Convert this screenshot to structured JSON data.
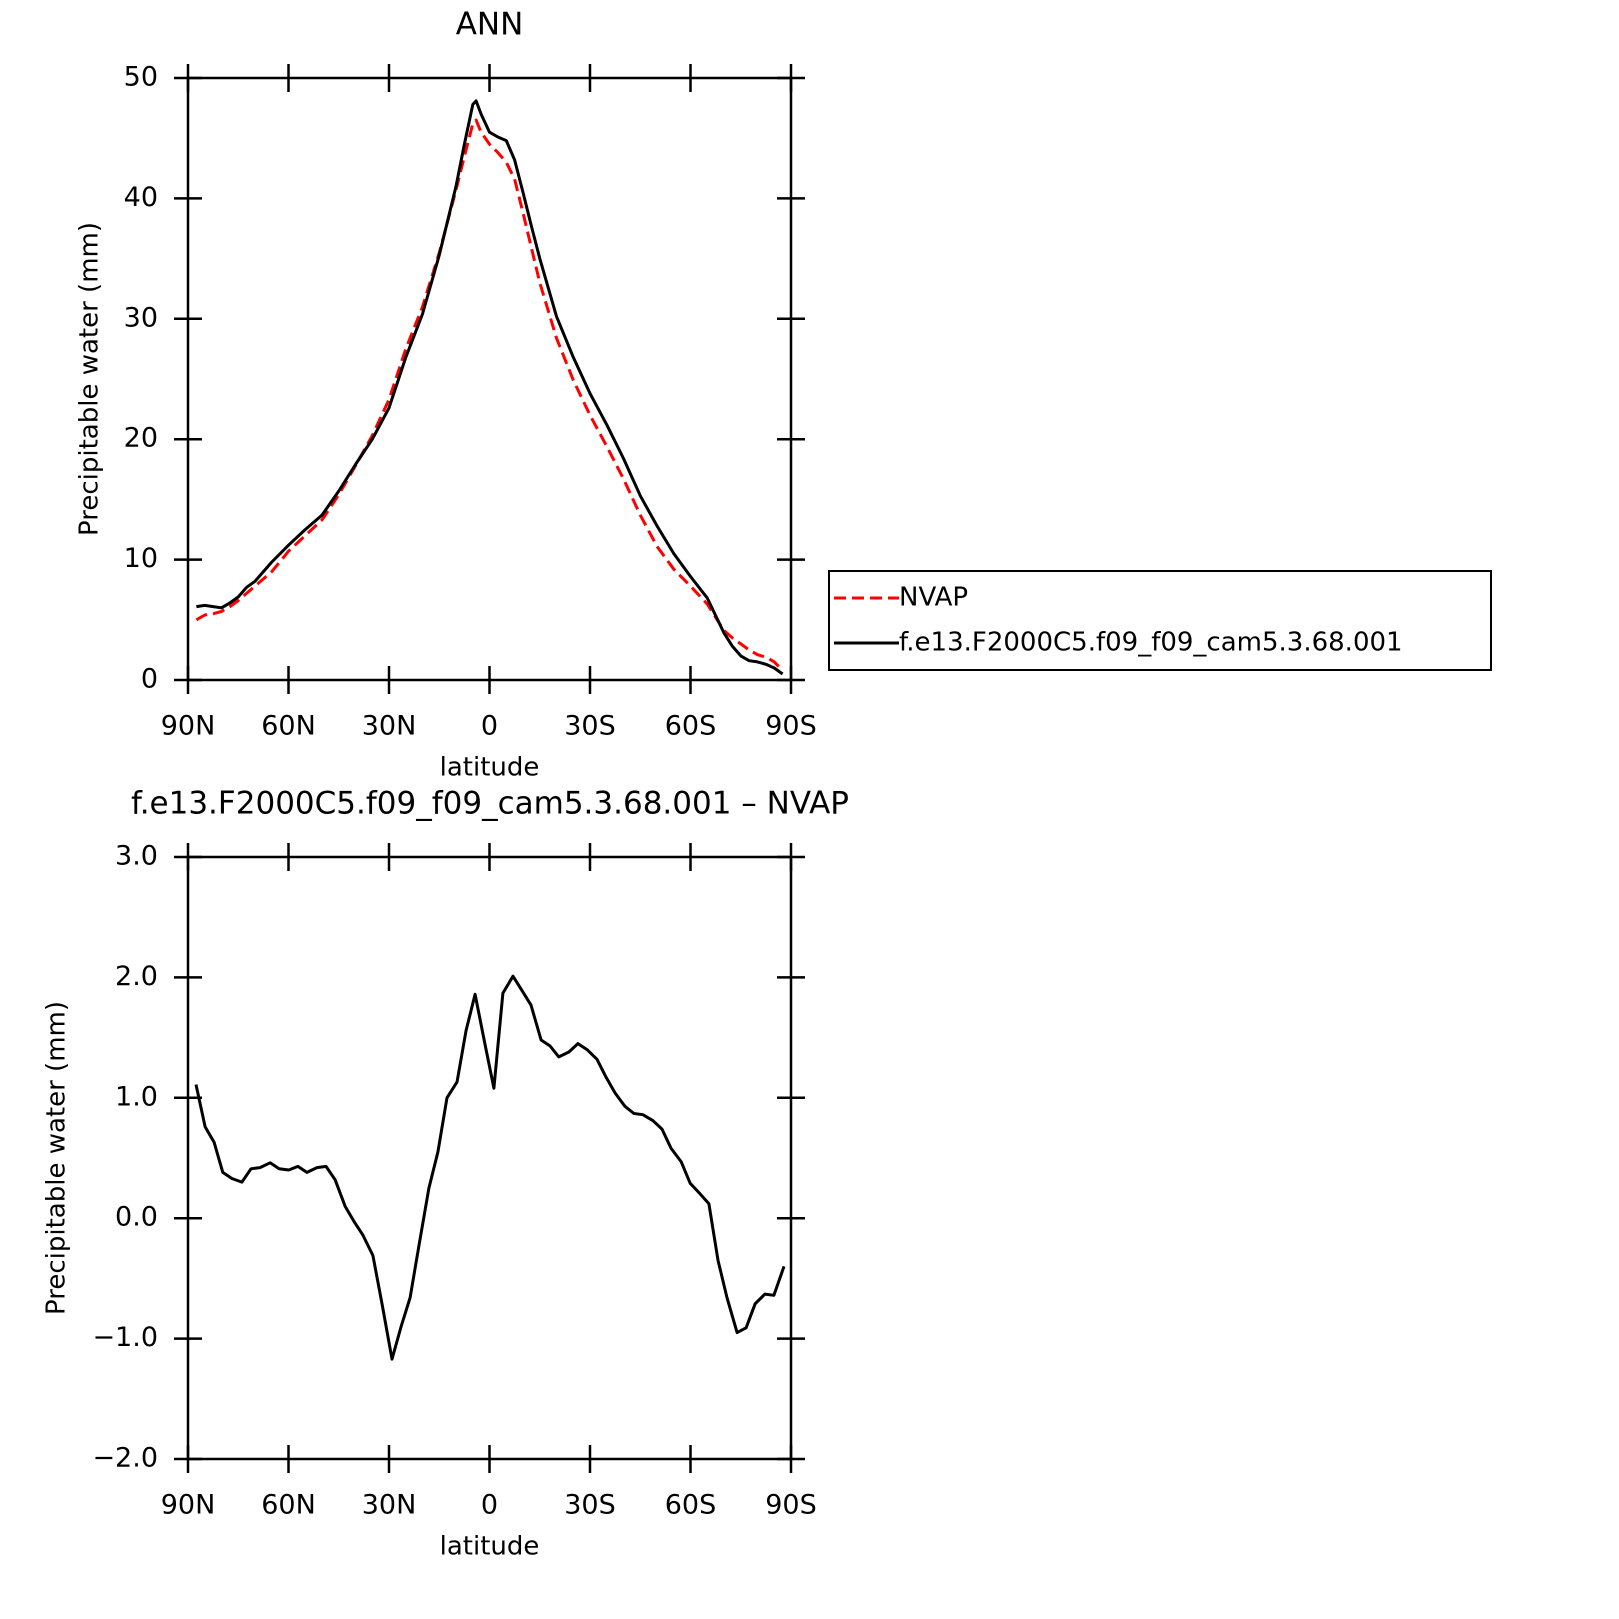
{
  "chart_data": [
    {
      "type": "line",
      "title": "ANN",
      "xlabel": "latitude",
      "ylabel": "Precipitable water (mm)",
      "x": [
        87.5,
        85,
        82.5,
        80,
        77.5,
        75,
        72.5,
        70,
        65,
        60,
        55,
        50,
        45,
        40,
        35,
        30,
        25,
        20,
        15,
        10,
        7.5,
        5,
        4,
        2.5,
        0,
        -2.5,
        -5,
        -7.5,
        -10,
        -12.5,
        -15,
        -20,
        -25,
        -30,
        -35,
        -40,
        -45,
        -50,
        -55,
        -60,
        -65,
        -70,
        -72.5,
        -75,
        -77.5,
        -80,
        -82.5,
        -85,
        -87.5
      ],
      "series": [
        {
          "name": "NVAP",
          "color": "#ff0000",
          "linestyle": "dashed",
          "values": [
            5.0,
            5.4,
            5.5,
            5.7,
            6.1,
            6.6,
            7.2,
            7.8,
            9.0,
            10.7,
            12.0,
            13.3,
            15.4,
            17.8,
            20.3,
            23.3,
            27.5,
            31.0,
            35.5,
            40.7,
            43.5,
            46.2,
            46.5,
            45.5,
            44.5,
            43.8,
            43.0,
            41.6,
            38.8,
            35.9,
            33.0,
            28.4,
            24.9,
            22.0,
            19.4,
            16.7,
            13.7,
            11.1,
            9.2,
            7.8,
            6.3,
            4.1,
            3.5,
            3.0,
            2.5,
            2.1,
            1.9,
            1.5,
            0.8
          ]
        },
        {
          "name": "f.e13.F2000C5.f09_f09_cam5.3.68.001",
          "color": "#000000",
          "linestyle": "solid",
          "values": [
            6.1,
            6.2,
            6.1,
            6.0,
            6.4,
            6.9,
            7.7,
            8.2,
            9.8,
            11.2,
            12.5,
            13.7,
            15.7,
            17.9,
            20.0,
            22.6,
            26.8,
            30.4,
            35.3,
            41.0,
            44.5,
            47.8,
            48.1,
            47.0,
            45.5,
            45.1,
            44.8,
            43.2,
            40.5,
            37.7,
            35.0,
            30.2,
            26.8,
            23.8,
            21.2,
            18.4,
            15.3,
            12.8,
            10.5,
            8.6,
            6.8,
            3.9,
            2.8,
            2.0,
            1.6,
            1.5,
            1.3,
            1.0,
            0.5
          ]
        }
      ],
      "xlim": [
        90,
        -90
      ],
      "xticks": [
        {
          "value": 90,
          "label": "90N"
        },
        {
          "value": 60,
          "label": "60N"
        },
        {
          "value": 30,
          "label": "30N"
        },
        0,
        {
          "value": -30,
          "label": "30S"
        },
        {
          "value": -60,
          "label": "60S"
        },
        {
          "value": -90,
          "label": "90S"
        }
      ],
      "ylim": [
        0,
        50
      ],
      "yticks": [
        0,
        10,
        20,
        30,
        40,
        50
      ],
      "legend": "right"
    },
    {
      "type": "line",
      "title": "f.e13.F2000C5.f09_f09_cam5.3.68.001 – NVAP",
      "xlabel": "latitude",
      "ylabel": "Precipitable water (mm)",
      "x": [
        87.6,
        84.9,
        82.2,
        79.6,
        76.9,
        73.9,
        71.2,
        68.5,
        65.5,
        62.8,
        59.9,
        57.2,
        54.5,
        51.5,
        48.8,
        46.1,
        43.1,
        40.4,
        37.8,
        34.8,
        32.1,
        29.1,
        26.4,
        23.7,
        21.0,
        18.1,
        15.4,
        12.7,
        9.7,
        7.0,
        4.3,
        1.3,
        -1.3,
        -4.0,
        -7.0,
        -9.7,
        -12.4,
        -15.4,
        -18.1,
        -20.7,
        -23.7,
        -26.4,
        -29.1,
        -32.1,
        -34.8,
        -37.5,
        -40.4,
        -43.1,
        -45.8,
        -48.8,
        -51.5,
        -54.2,
        -57.2,
        -59.9,
        -62.6,
        -65.5,
        -68.2,
        -70.9,
        -73.9,
        -76.6,
        -79.3,
        -82.2,
        -84.9,
        -87.9
      ],
      "series": [
        {
          "name": null,
          "color": "#000000",
          "linestyle": "solid",
          "values": [
            1.11,
            0.76,
            0.63,
            0.38,
            0.33,
            0.3,
            0.41,
            0.42,
            0.46,
            0.41,
            0.4,
            0.43,
            0.38,
            0.42,
            0.43,
            0.32,
            0.1,
            -0.03,
            -0.14,
            -0.31,
            -0.71,
            -1.17,
            -0.9,
            -0.66,
            -0.22,
            0.25,
            0.55,
            1.0,
            1.13,
            1.56,
            1.86,
            1.44,
            1.08,
            1.87,
            2.01,
            1.89,
            1.77,
            1.48,
            1.43,
            1.34,
            1.38,
            1.45,
            1.4,
            1.32,
            1.17,
            1.04,
            0.93,
            0.87,
            0.86,
            0.81,
            0.74,
            0.58,
            0.47,
            0.29,
            0.21,
            0.12,
            -0.35,
            -0.66,
            -0.95,
            -0.91,
            -0.71,
            -0.63,
            -0.64,
            -0.4
          ]
        }
      ],
      "xlim": [
        90,
        -90
      ],
      "xticks": [
        {
          "value": 90,
          "label": "90N"
        },
        {
          "value": 60,
          "label": "60N"
        },
        {
          "value": 30,
          "label": "30N"
        },
        0,
        {
          "value": -30,
          "label": "30S"
        },
        {
          "value": -60,
          "label": "60S"
        },
        {
          "value": -90,
          "label": "90S"
        }
      ],
      "ylim": [
        -2,
        3
      ],
      "yticks": [
        {
          "value": -2,
          "label": "−2.0"
        },
        {
          "value": -1,
          "label": "−1.0"
        },
        {
          "value": 0,
          "label": "0.0"
        },
        {
          "value": 1,
          "label": "1.0"
        },
        {
          "value": 2,
          "label": "2.0"
        },
        {
          "value": 3,
          "label": "3.0"
        }
      ]
    }
  ]
}
